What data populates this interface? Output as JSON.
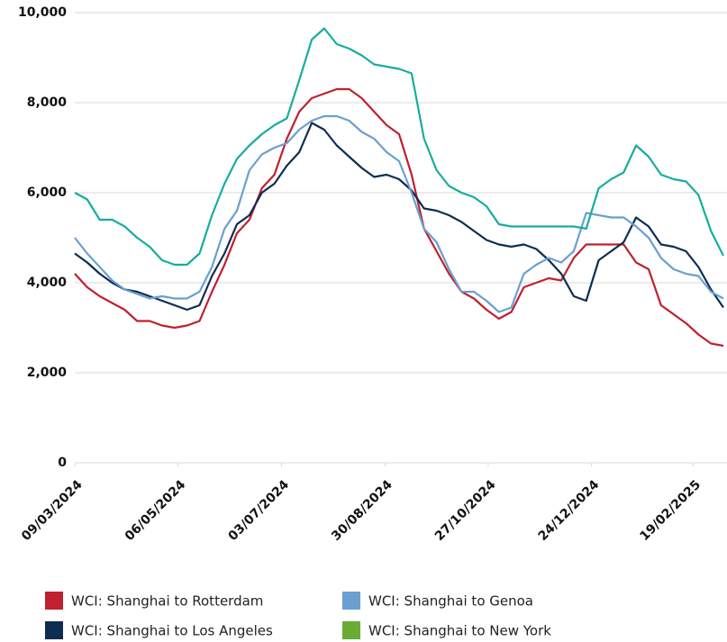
{
  "chart_data": {
    "type": "line",
    "x": [
      "2024-03-09",
      "2024-03-16",
      "2024-03-23",
      "2024-03-30",
      "2024-04-06",
      "2024-04-13",
      "2024-04-20",
      "2024-04-27",
      "2024-05-04",
      "2024-05-11",
      "2024-05-18",
      "2024-05-25",
      "2024-06-01",
      "2024-06-08",
      "2024-06-15",
      "2024-06-22",
      "2024-06-29",
      "2024-07-06",
      "2024-07-13",
      "2024-07-20",
      "2024-07-27",
      "2024-08-03",
      "2024-08-10",
      "2024-08-17",
      "2024-08-24",
      "2024-08-31",
      "2024-09-07",
      "2024-09-14",
      "2024-09-21",
      "2024-09-28",
      "2024-10-05",
      "2024-10-12",
      "2024-10-19",
      "2024-10-26",
      "2024-11-02",
      "2024-11-09",
      "2024-11-16",
      "2024-11-23",
      "2024-11-30",
      "2024-12-07",
      "2024-12-14",
      "2024-12-21",
      "2024-12-28",
      "2025-01-04",
      "2025-01-11",
      "2025-01-18",
      "2025-01-25",
      "2025-02-01",
      "2025-02-08",
      "2025-02-15",
      "2025-02-22",
      "2025-03-01",
      "2025-03-08"
    ],
    "series": [
      {
        "name": "WCI: Shanghai to Rotterdam",
        "color": "#c0202f",
        "values": [
          4200,
          3900,
          3700,
          3550,
          3400,
          3150,
          3150,
          3050,
          3000,
          3050,
          3150,
          3800,
          4400,
          5100,
          5400,
          6100,
          6400,
          7200,
          7800,
          8100,
          8200,
          8300,
          8300,
          8100,
          7800,
          7500,
          7300,
          6400,
          5200,
          4700,
          4200,
          3800,
          3650,
          3400,
          3200,
          3350,
          3900,
          4000,
          4100,
          4050,
          4550,
          4850,
          4850,
          4850,
          4850,
          4450,
          4300,
          3500,
          3300,
          3100,
          2850,
          2650,
          2600
        ]
      },
      {
        "name": "WCI: Shanghai to Los Angeles",
        "color": "#0d2d52",
        "values": [
          4650,
          4450,
          4200,
          4000,
          3850,
          3800,
          3700,
          3600,
          3500,
          3400,
          3500,
          4150,
          4650,
          5300,
          5500,
          6000,
          6200,
          6600,
          6900,
          7550,
          7400,
          7050,
          6800,
          6550,
          6350,
          6400,
          6300,
          6050,
          5650,
          5600,
          5500,
          5350,
          5150,
          4950,
          4850,
          4800,
          4850,
          4750,
          4500,
          4200,
          3700,
          3600,
          4500,
          4700,
          4900,
          5450,
          5250,
          4850,
          4800,
          4700,
          4350,
          3850,
          3450
        ]
      },
      {
        "name": "WCI: Shanghai to Genoa",
        "color": "#6b9fd1",
        "values": [
          5000,
          4650,
          4350,
          4050,
          3850,
          3750,
          3650,
          3700,
          3650,
          3650,
          3800,
          4350,
          5200,
          5600,
          6500,
          6850,
          7000,
          7100,
          7400,
          7600,
          7700,
          7700,
          7600,
          7350,
          7200,
          6900,
          6700,
          6000,
          5200,
          4900,
          4300,
          3800,
          3800,
          3600,
          3350,
          3450,
          4200,
          4400,
          4550,
          4450,
          4700,
          5550,
          5500,
          5450,
          5450,
          5250,
          5000,
          4550,
          4300,
          4200,
          4150,
          3800,
          3650
        ]
      },
      {
        "name": "WCI: Shanghai to New York",
        "color": "#17ad9e",
        "legend_color": "#6aab35",
        "values": [
          6000,
          5850,
          5400,
          5400,
          5250,
          5000,
          4800,
          4500,
          4400,
          4400,
          4650,
          5500,
          6200,
          6750,
          7050,
          7300,
          7500,
          7650,
          8500,
          9400,
          9650,
          9300,
          9200,
          9050,
          8850,
          8800,
          8750,
          8650,
          7200,
          6500,
          6150,
          6000,
          5900,
          5700,
          5300,
          5250,
          5250,
          5250,
          5250,
          5250,
          5250,
          5200,
          6100,
          6300,
          6450,
          7050,
          6800,
          6400,
          6300,
          6250,
          5950,
          5150,
          4600
        ]
      }
    ],
    "xlim": [
      "2024-03-09",
      "2025-03-10"
    ],
    "xticks": [
      {
        "value": "2024-03-09",
        "label": "09/03/2024"
      },
      {
        "value": "2024-05-06",
        "label": "06/05/2024"
      },
      {
        "value": "2024-07-03",
        "label": "03/07/2024"
      },
      {
        "value": "2024-08-30",
        "label": "30/08/2024"
      },
      {
        "value": "2024-10-27",
        "label": "27/10/2024"
      },
      {
        "value": "2024-12-24",
        "label": "24/12/2024"
      },
      {
        "value": "2025-02-19",
        "label": "19/02/2025"
      }
    ],
    "ylim": [
      0,
      10000
    ],
    "yticks": [
      0,
      {
        "value": 2000,
        "label": "2,000"
      },
      {
        "value": 4000,
        "label": "4,000"
      },
      {
        "value": 6000,
        "label": "6,000"
      },
      {
        "value": 8000,
        "label": "8,000"
      },
      {
        "value": 10000,
        "label": "10,000"
      }
    ],
    "grid": true
  }
}
